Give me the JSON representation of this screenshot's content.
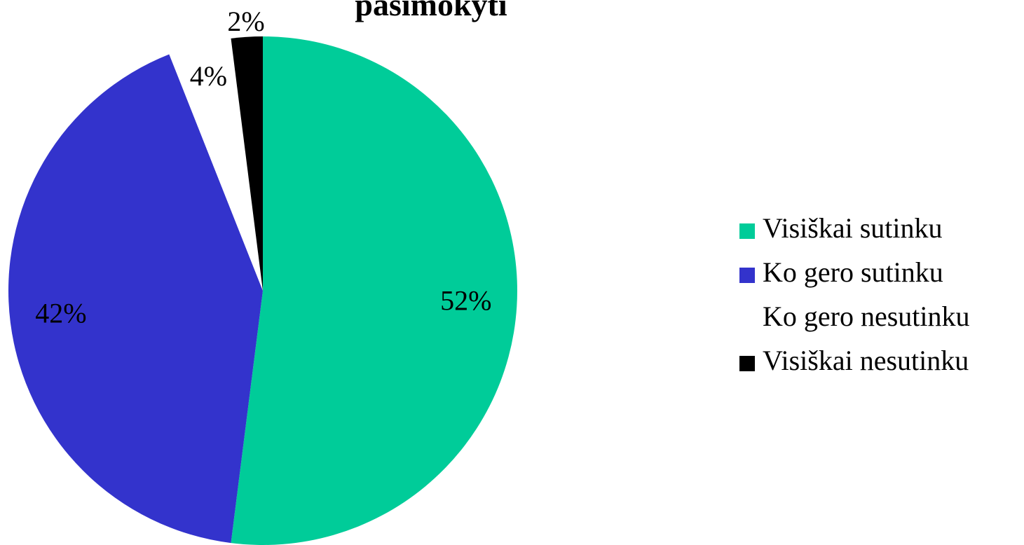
{
  "chart_data": {
    "type": "pie",
    "title": "pasimokyti",
    "categories": [
      "Visiškai sutinku",
      "Ko gero sutinku",
      "Ko gero nesutinku",
      "Visiškai nesutinku"
    ],
    "values": [
      52,
      42,
      4,
      2
    ],
    "value_labels": [
      "52%",
      "42%",
      "4%",
      "2%"
    ],
    "colors": [
      "#00cc99",
      "#3333cc",
      "#ffffff",
      "#000000"
    ],
    "legend": "right"
  }
}
